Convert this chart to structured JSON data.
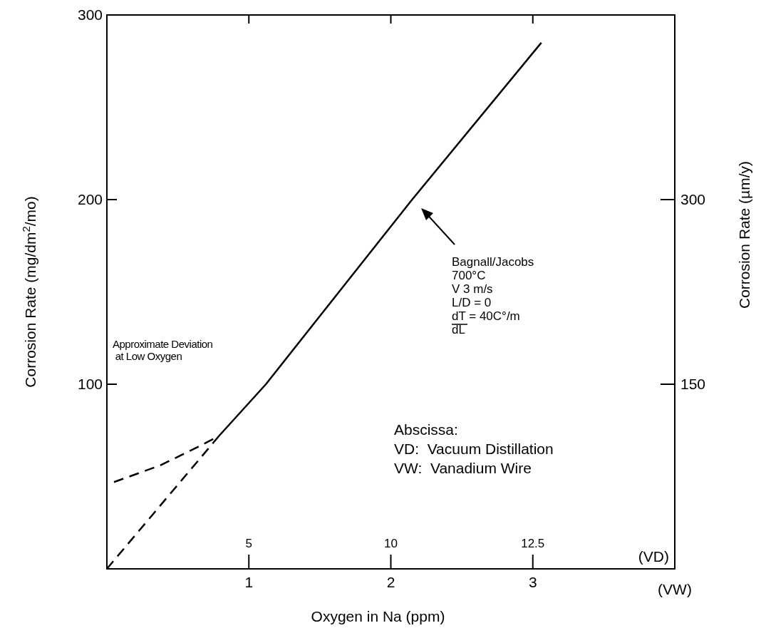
{
  "chart_data": {
    "type": "line",
    "xlabel": "Oxygen in Na (ppm)",
    "ylabel": "Corrosion Rate (mg/dm$^{2}$/mo)",
    "y2label": "Corrosion Rate (µm/y)",
    "xlim": [
      0,
      4
    ],
    "xticks": [
      1,
      2,
      3
    ],
    "ylim": [
      0,
      300
    ],
    "yticks": [
      100,
      200,
      300
    ],
    "y2lim": [
      0,
      450
    ],
    "y2ticks": [
      150,
      300
    ],
    "grid": false,
    "marker": "none",
    "series": [
      {
        "color": "#000000",
        "line_style": "solid",
        "x": [
          0.79,
          1.12,
          2.15,
          3.06
        ],
        "values": [
          72,
          100,
          200,
          285
        ]
      },
      {
        "color": "#000000",
        "line_style": "dashed",
        "x": [
          0,
          0.79
        ],
        "values": [
          0,
          72
        ]
      },
      {
        "color": "#000000",
        "line_style": "dashed",
        "x": [
          0.05,
          0.375,
          0.64,
          0.79
        ],
        "values": [
          47,
          56,
          66,
          72
        ]
      }
    ],
    "annotations": [
      "Approximate Deviation\n at Low Oxygen",
      "Bagnall/Jacobs\n700°C\nV 3 m/s\nL/D = 0\ndT = 40C°/m\ndL",
      "Abscissa:\nVD:  Vacuum Distillation\nVW:  Vanadium Wire",
      "(VW)",
      "(VD)",
      "5",
      "10",
      "12.5"
    ]
  }
}
